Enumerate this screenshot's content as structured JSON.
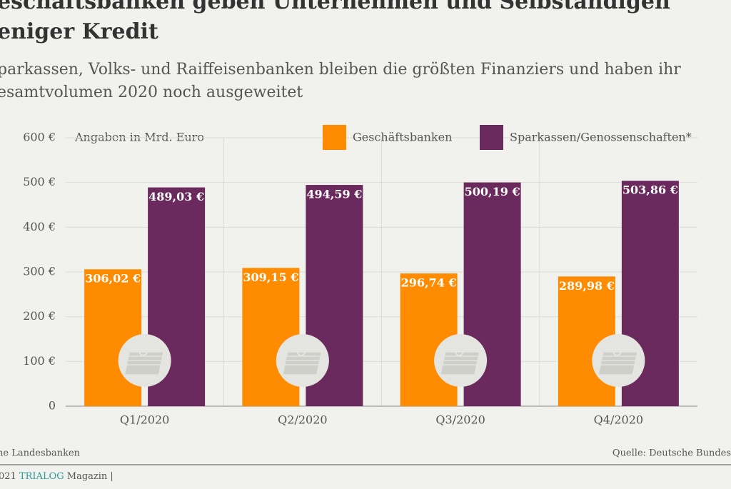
{
  "chart_data": {
    "type": "bar",
    "title": [
      "eschäftsbanken geben Unternehmen und Selbständigen",
      "eniger Kredit"
    ],
    "subtitle": [
      "parkassen, Volks- und Raiffeisenbanken bleiben die größten Finanziers und haben ihr",
      "esamtvolumen 2020 noch ausgeweitet"
    ],
    "note": "Angaben in Mrd. Euro",
    "categories": [
      "Q1/2020",
      "Q2/2020",
      "Q3/2020",
      "Q4/2020"
    ],
    "series": [
      {
        "name": "Geschäftsbanken",
        "color": "#ff8c00",
        "values": [
          306.02,
          309.15,
          296.74,
          289.98
        ],
        "value_labels": [
          "306,02 €",
          "309,15 €",
          "296,74 €",
          "289,98 €"
        ]
      },
      {
        "name": "Sparkassen/Genossenschaften*",
        "color": "#6b2a5e",
        "values": [
          489.03,
          494.59,
          500.19,
          503.86
        ],
        "value_labels": [
          "489,03 €",
          "494,59 €",
          "500,19 €",
          "503,86 €"
        ]
      }
    ],
    "ylim": [
      0,
      600
    ],
    "yticks": [
      0,
      {
        "value": 100,
        "label": "100 €"
      },
      {
        "value": 200,
        "label": "200 €"
      },
      {
        "value": 300,
        "label": "300 €"
      },
      {
        "value": 400,
        "label": "400 €"
      },
      {
        "value": 500,
        "label": "500 €"
      },
      {
        "value": 600,
        "label": "600 €"
      }
    ],
    "grid": true,
    "footnote": "ne Landesbanken",
    "source": "Quelle: Deutsche Bundes"
  },
  "footer": {
    "year": "021",
    "brand": "TRIALOG",
    "rest": "Magazin |"
  }
}
